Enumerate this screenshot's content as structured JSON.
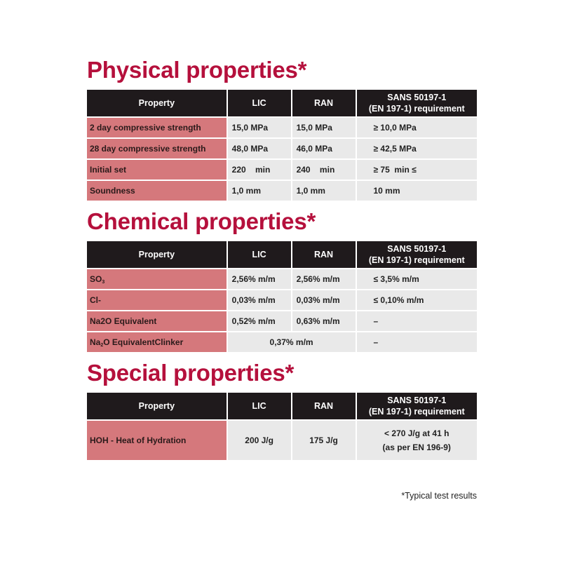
{
  "sections": {
    "physical": {
      "title": "Physical properties*",
      "headers": [
        "Property",
        "LIC",
        "RAN",
        "SANS 50197-1",
        "(EN 197-1) requirement"
      ],
      "rows": [
        {
          "property": "2 day compressive strength",
          "lic": "15,0  MPa",
          "ran": "15,0  MPa",
          "req": "≥ 10,0 MPa"
        },
        {
          "property": "28 day compressive strength",
          "lic": "48,0  MPa",
          "ran": "46,0  MPa",
          "req": "≥ 42,5 MPa"
        },
        {
          "property": "Initial set",
          "lic": "220    min",
          "ran": "240    min",
          "req": "≥ 75  min ≤"
        },
        {
          "property": "Soundness",
          "lic": "1,0 mm",
          "ran": "1,0 mm",
          "req": "10 mm"
        }
      ]
    },
    "chemical": {
      "title": "Chemical properties*",
      "headers": [
        "Property",
        "LIC",
        "RAN",
        "SANS 50197-1",
        "(EN 197-1) requirement"
      ],
      "rows": [
        {
          "property": "SO",
          "property_sub": "3",
          "lic": "2,56% m/m",
          "ran": "2,56% m/m",
          "req": "≤ 3,5% m/m"
        },
        {
          "property": "Cl-",
          "lic": "0,03% m/m",
          "ran": "0,03% m/m",
          "req": "≤ 0,10% m/m"
        },
        {
          "property": "Na2O Equivalent",
          "lic": "0,52% m/m",
          "ran": "0,63% m/m",
          "req": "–"
        },
        {
          "property": "Na",
          "property_sub": "2",
          "property_rest": "O EquivalentClinker",
          "merged": "0,37% m/m",
          "req": "–"
        }
      ]
    },
    "special": {
      "title": "Special properties*",
      "headers": [
        "Property",
        "LIC",
        "RAN",
        "SANS 50197-1",
        "(EN 197-1) requirement"
      ],
      "rows": [
        {
          "property": "HOH - Heat of Hydration",
          "lic": "200 J/g",
          "ran": "175 J/g",
          "req_line1": "< 270 J/g at 41 h",
          "req_line2": "(as per EN 196-9)"
        }
      ]
    }
  },
  "footnote": "*Typical test results"
}
